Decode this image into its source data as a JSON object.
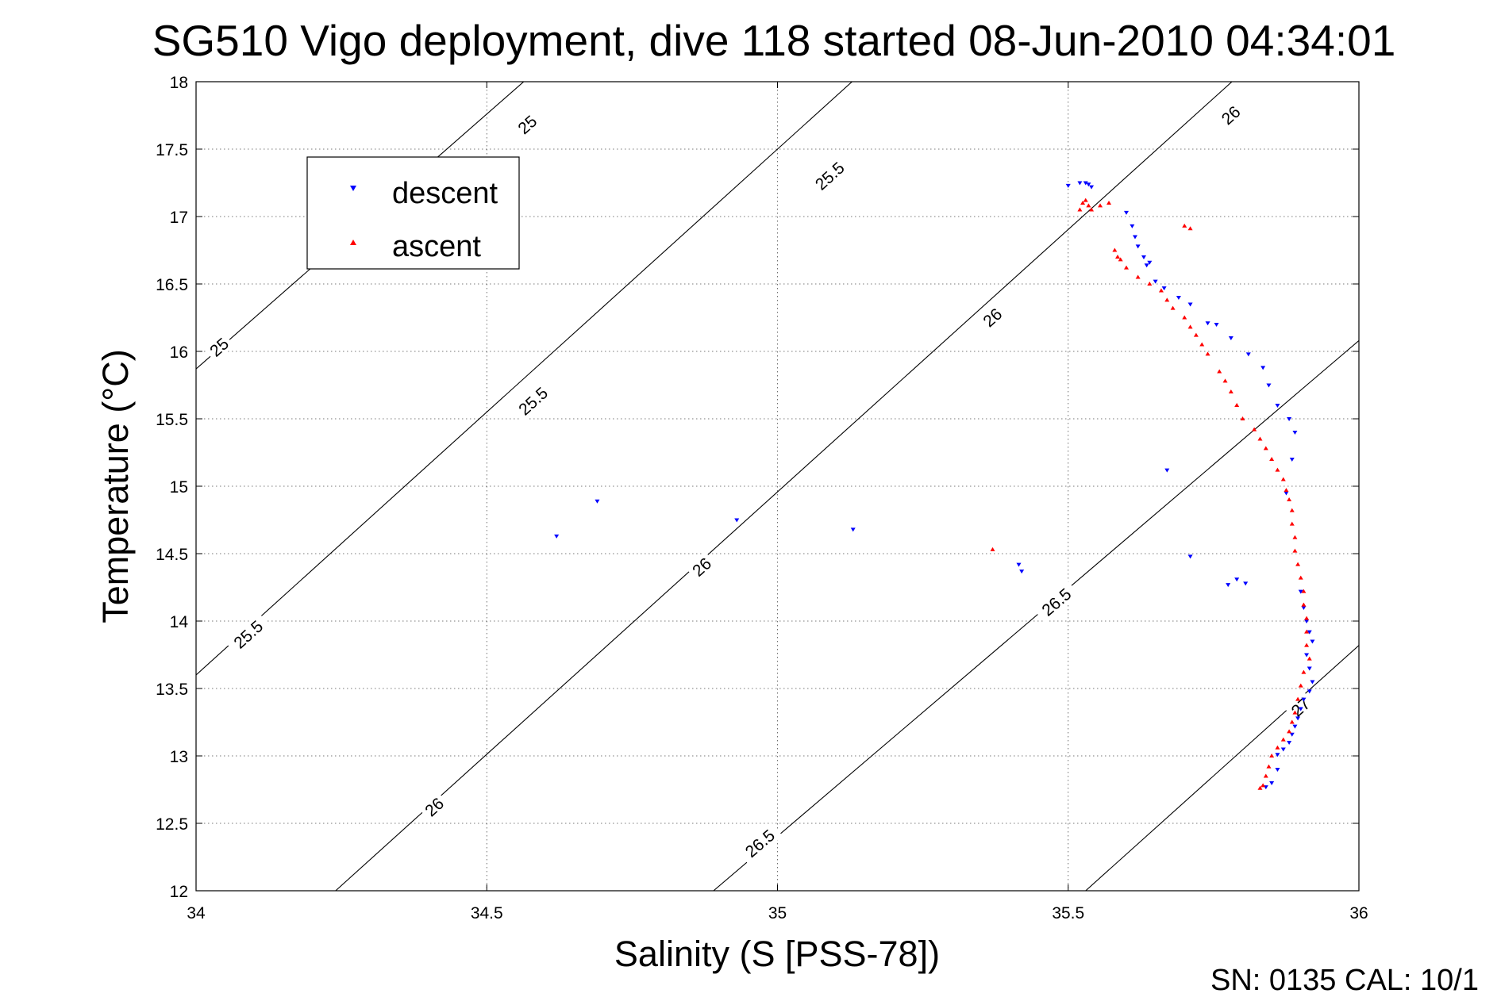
{
  "chart_data": {
    "type": "scatter",
    "title": "SG510 Vigo deployment, dive 118 started 08-Jun-2010 04:34:01",
    "xlabel": "Salinity (S [PSS-78])",
    "ylabel": "Temperature (°C)",
    "xlim": [
      34,
      36
    ],
    "ylim": [
      12,
      18
    ],
    "xticks": [
      "34",
      "34.5",
      "35",
      "35.5",
      "36"
    ],
    "yticks": [
      "12",
      "12.5",
      "13",
      "13.5",
      "14",
      "14.5",
      "15",
      "15.5",
      "16",
      "16.5",
      "17",
      "17.5",
      "18"
    ],
    "grid": true,
    "legend_position": "top-left",
    "footer": "SN: 0135  CAL: 10/1",
    "density_contours": [
      {
        "level": 25,
        "points": [
          [
            34.0,
            15.87
          ],
          [
            36.0,
            23.43
          ]
        ],
        "labels": [
          {
            "text": "25",
            "s": 34.04,
            "t": 16.03
          },
          {
            "text": "25",
            "s": 34.57,
            "t": 17.68
          }
        ]
      },
      {
        "level": 25.5,
        "points": [
          [
            34.0,
            13.6
          ],
          [
            36.0,
            21.4
          ]
        ],
        "labels": [
          {
            "text": "25.5",
            "s": 34.09,
            "t": 13.9
          },
          {
            "text": "25.5",
            "s": 34.58,
            "t": 15.63
          },
          {
            "text": "25.5",
            "s": 35.09,
            "t": 17.3
          }
        ]
      },
      {
        "level": 26,
        "points": [
          [
            34.24,
            12.0
          ],
          [
            36.0,
            18.85
          ]
        ],
        "labels": [
          {
            "text": "26",
            "s": 34.41,
            "t": 12.62
          },
          {
            "text": "26",
            "s": 34.87,
            "t": 14.4
          },
          {
            "text": "26",
            "s": 35.37,
            "t": 16.25
          },
          {
            "text": "26",
            "s": 35.78,
            "t": 17.75
          }
        ]
      },
      {
        "level": 26.5,
        "points": [
          [
            34.89,
            12.0
          ],
          [
            36.0,
            16.08
          ]
        ],
        "labels": [
          {
            "text": "26.5",
            "s": 34.97,
            "t": 12.35
          },
          {
            "text": "26.5",
            "s": 35.48,
            "t": 14.14
          }
        ]
      },
      {
        "level": 27,
        "points": [
          [
            35.53,
            12.0
          ],
          [
            36.0,
            13.82
          ]
        ],
        "labels": [
          {
            "text": "27",
            "s": 35.9,
            "t": 13.36
          }
        ]
      }
    ],
    "series": [
      {
        "name": "descent",
        "color": "#0000ff",
        "marker": "triangle-down",
        "points": [
          [
            35.5,
            17.23
          ],
          [
            35.52,
            17.25
          ],
          [
            35.53,
            17.25
          ],
          [
            35.535,
            17.24
          ],
          [
            35.54,
            17.22
          ],
          [
            35.6,
            17.03
          ],
          [
            35.61,
            16.93
          ],
          [
            35.615,
            16.85
          ],
          [
            35.62,
            16.78
          ],
          [
            35.63,
            16.7
          ],
          [
            35.635,
            16.64
          ],
          [
            35.64,
            16.66
          ],
          [
            35.65,
            16.52
          ],
          [
            35.665,
            16.47
          ],
          [
            35.69,
            16.4
          ],
          [
            35.71,
            16.35
          ],
          [
            35.74,
            16.21
          ],
          [
            35.755,
            16.2
          ],
          [
            35.78,
            16.1
          ],
          [
            35.81,
            15.98
          ],
          [
            35.835,
            15.88
          ],
          [
            35.845,
            15.75
          ],
          [
            35.86,
            15.6
          ],
          [
            35.88,
            15.5
          ],
          [
            35.89,
            15.4
          ],
          [
            35.885,
            15.2
          ],
          [
            35.67,
            15.12
          ],
          [
            35.875,
            14.95
          ],
          [
            35.71,
            14.48
          ],
          [
            35.42,
            14.37
          ],
          [
            35.415,
            14.42
          ],
          [
            35.775,
            14.27
          ],
          [
            35.79,
            14.31
          ],
          [
            35.805,
            14.28
          ],
          [
            35.9,
            14.22
          ],
          [
            35.905,
            14.1
          ],
          [
            35.91,
            14.0
          ],
          [
            35.915,
            13.92
          ],
          [
            35.92,
            13.85
          ],
          [
            35.91,
            13.75
          ],
          [
            35.915,
            13.65
          ],
          [
            35.92,
            13.55
          ],
          [
            35.915,
            13.48
          ],
          [
            35.905,
            13.42
          ],
          [
            35.9,
            13.35
          ],
          [
            35.895,
            13.28
          ],
          [
            35.89,
            13.22
          ],
          [
            35.885,
            13.16
          ],
          [
            35.88,
            13.1
          ],
          [
            35.87,
            13.05
          ],
          [
            35.86,
            13.01
          ],
          [
            35.86,
            12.9
          ],
          [
            35.85,
            12.8
          ],
          [
            35.84,
            12.77
          ],
          [
            34.62,
            14.63
          ],
          [
            34.69,
            14.89
          ],
          [
            34.93,
            14.75
          ],
          [
            35.13,
            14.68
          ]
        ]
      },
      {
        "name": "ascent",
        "color": "#ff0000",
        "marker": "triangle-up",
        "points": [
          [
            35.52,
            17.05
          ],
          [
            35.525,
            17.1
          ],
          [
            35.53,
            17.12
          ],
          [
            35.535,
            17.08
          ],
          [
            35.54,
            17.05
          ],
          [
            35.555,
            17.08
          ],
          [
            35.57,
            17.1
          ],
          [
            35.58,
            16.75
          ],
          [
            35.585,
            16.7
          ],
          [
            35.59,
            16.68
          ],
          [
            35.6,
            16.62
          ],
          [
            35.62,
            16.55
          ],
          [
            35.64,
            16.5
          ],
          [
            35.66,
            16.45
          ],
          [
            35.67,
            16.38
          ],
          [
            35.68,
            16.32
          ],
          [
            35.7,
            16.25
          ],
          [
            35.71,
            16.18
          ],
          [
            35.72,
            16.12
          ],
          [
            35.73,
            16.05
          ],
          [
            35.74,
            15.98
          ],
          [
            35.76,
            15.85
          ],
          [
            35.77,
            15.78
          ],
          [
            35.78,
            15.7
          ],
          [
            35.79,
            15.6
          ],
          [
            35.8,
            15.5
          ],
          [
            35.82,
            15.42
          ],
          [
            35.83,
            15.35
          ],
          [
            35.84,
            15.28
          ],
          [
            35.85,
            15.2
          ],
          [
            35.86,
            15.12
          ],
          [
            35.87,
            15.05
          ],
          [
            35.875,
            14.97
          ],
          [
            35.88,
            14.9
          ],
          [
            35.885,
            14.82
          ],
          [
            35.885,
            14.72
          ],
          [
            35.89,
            14.62
          ],
          [
            35.89,
            14.52
          ],
          [
            35.895,
            14.42
          ],
          [
            35.9,
            14.32
          ],
          [
            35.905,
            14.22
          ],
          [
            35.905,
            14.12
          ],
          [
            35.91,
            14.02
          ],
          [
            35.91,
            13.92
          ],
          [
            35.91,
            13.82
          ],
          [
            35.915,
            13.72
          ],
          [
            35.905,
            13.62
          ],
          [
            35.9,
            13.52
          ],
          [
            35.895,
            13.42
          ],
          [
            35.89,
            13.32
          ],
          [
            35.885,
            13.25
          ],
          [
            35.88,
            13.18
          ],
          [
            35.87,
            13.12
          ],
          [
            35.86,
            13.06
          ],
          [
            35.85,
            13.0
          ],
          [
            35.845,
            12.92
          ],
          [
            35.84,
            12.85
          ],
          [
            35.835,
            12.78
          ],
          [
            35.83,
            12.76
          ],
          [
            35.7,
            16.93
          ],
          [
            35.71,
            16.91
          ],
          [
            35.37,
            14.53
          ]
        ]
      }
    ]
  }
}
